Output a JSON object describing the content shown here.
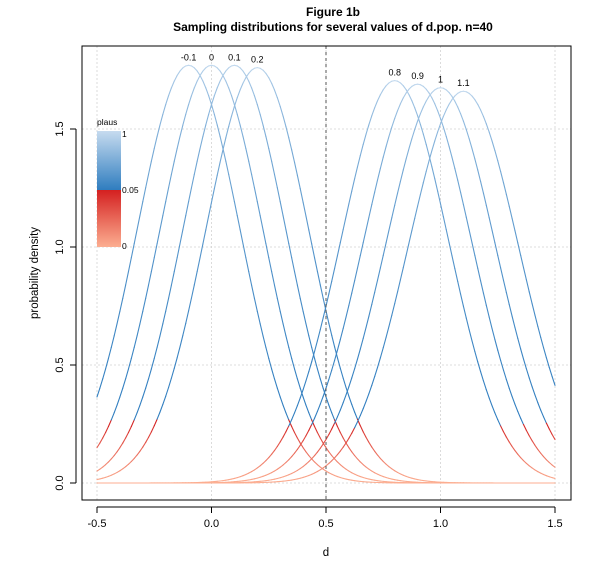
{
  "chart_data": {
    "type": "line",
    "title": "Figure 1b",
    "subtitle": "Sampling distributions for several values of d.pop. n=40",
    "xlabel": "d",
    "ylabel": "probability density",
    "xlim": [
      -0.5,
      1.5
    ],
    "ylim": [
      0,
      1.8
    ],
    "x_ticks": [
      -0.5,
      0.0,
      0.5,
      1.0,
      1.5
    ],
    "x_tick_labels": [
      "-0.5",
      "0.0",
      "0.5",
      "1.0",
      "1.5"
    ],
    "y_ticks": [
      0.0,
      0.5,
      1.0,
      1.5
    ],
    "y_tick_labels": [
      "0.0",
      "0.5",
      "1.0",
      "1.5"
    ],
    "grid": true,
    "reference_line": {
      "x": 0.5,
      "style": "dashed"
    },
    "series": [
      {
        "name": "-0.1",
        "mean": -0.1,
        "sd": 0.225,
        "peak": 1.77
      },
      {
        "name": "0",
        "mean": 0.0,
        "sd": 0.225,
        "peak": 1.77
      },
      {
        "name": "0.1",
        "mean": 0.1,
        "sd": 0.225,
        "peak": 1.77
      },
      {
        "name": "0.2",
        "mean": 0.2,
        "sd": 0.226,
        "peak": 1.76
      },
      {
        "name": "0.8",
        "mean": 0.8,
        "sd": 0.234,
        "peak": 1.705
      },
      {
        "name": "0.9",
        "mean": 0.9,
        "sd": 0.236,
        "peak": 1.69
      },
      {
        "name": "1",
        "mean": 1.0,
        "sd": 0.238,
        "peak": 1.675
      },
      {
        "name": "1.1",
        "mean": 1.1,
        "sd": 0.24,
        "peak": 1.66
      }
    ],
    "legend": {
      "title": "plaus",
      "position": "top-left",
      "labels": [
        "1",
        "0.05",
        "0"
      ],
      "colors": {
        "high_top": "#c6dbef",
        "high_bottom": "#2f7dbf",
        "low_top": "#d42020",
        "low_bottom": "#fcae91"
      }
    },
    "colors": {
      "grid": "#d3d3d3",
      "axis": "#000000",
      "reference": "#555555"
    }
  }
}
